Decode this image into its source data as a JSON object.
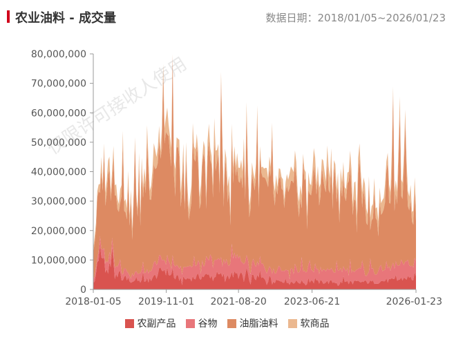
{
  "header": {
    "title": "农业油料 - 成交量",
    "date_range": "数据日期：2018/01/05~2026/01/23",
    "accent_color": "#d0021b"
  },
  "watermark": "仅限许可接收人使用",
  "chart_data": {
    "type": "area",
    "stacked": true,
    "y_axis": {
      "ylim": [
        0,
        80000000
      ],
      "ticks": [
        0,
        10000000,
        20000000,
        30000000,
        40000000,
        50000000,
        60000000,
        70000000,
        80000000
      ],
      "tick_labels": [
        "0",
        "10,000,000",
        "20,000,000",
        "30,000,000",
        "40,000,000",
        "50,000,000",
        "60,000,000",
        "70,000,000",
        "80,000,000"
      ]
    },
    "x_axis": {
      "range": [
        "2018-01-05",
        "2026-01-23"
      ],
      "tick_labels": [
        "2018-01-05",
        "2019-11-01",
        "2021-08-20",
        "2023-06-21",
        "2026-01-23"
      ]
    },
    "grid": false,
    "legend_position": "bottom",
    "dates": [
      "2018-01",
      "2018-04",
      "2018-07",
      "2018-10",
      "2019-01",
      "2019-04",
      "2019-07",
      "2019-10",
      "2020-01",
      "2020-04",
      "2020-07",
      "2020-10",
      "2021-01",
      "2021-04",
      "2021-07",
      "2021-10",
      "2022-01",
      "2022-04",
      "2022-07",
      "2022-10",
      "2023-01",
      "2023-04",
      "2023-07",
      "2023-10",
      "2024-01",
      "2024-04",
      "2024-07",
      "2024-10",
      "2025-01",
      "2025-04",
      "2025-07",
      "2025-10",
      "2026-01"
    ],
    "series": [
      {
        "name": "农副产品",
        "color": "#d9534f",
        "values": [
          3000000,
          11000000,
          7000000,
          4000000,
          3000000,
          3000000,
          4000000,
          7000000,
          4000000,
          3500000,
          4000000,
          4500000,
          5000000,
          4500000,
          5000000,
          4500000,
          4000000,
          3500000,
          3000000,
          3000000,
          2500000,
          2500000,
          2500000,
          2500000,
          2500000,
          2500000,
          2500000,
          2500000,
          2500000,
          3000000,
          3000000,
          4000000,
          3500000
        ]
      },
      {
        "name": "谷物",
        "color": "#e8767a",
        "values": [
          2000000,
          3000000,
          3000000,
          2500000,
          2500000,
          3000000,
          3500000,
          4000000,
          3500000,
          3500000,
          4000000,
          4500000,
          5000000,
          5000000,
          5000000,
          5000000,
          4500000,
          4500000,
          4000000,
          4000000,
          4000000,
          4000000,
          4000000,
          4000000,
          4000000,
          4000000,
          4000000,
          4000000,
          4000000,
          4500000,
          4500000,
          5000000,
          4500000
        ]
      },
      {
        "name": "油脂油料",
        "color": "#dd8a62",
        "values": [
          10000000,
          27000000,
          25000000,
          24000000,
          22000000,
          28000000,
          35000000,
          38000000,
          33000000,
          30000000,
          35000000,
          33000000,
          32000000,
          30000000,
          28000000,
          30000000,
          28000000,
          27000000,
          25000000,
          24000000,
          26000000,
          27000000,
          28000000,
          30000000,
          27000000,
          26000000,
          26000000,
          25000000,
          24000000,
          27000000,
          29000000,
          24000000,
          17000000
        ]
      },
      {
        "name": "软商品",
        "color": "#ebb890",
        "values": [
          1500000,
          4500000,
          4000000,
          4000000,
          3500000,
          4000000,
          6000000,
          6000000,
          5000000,
          4500000,
          5000000,
          5000000,
          4500000,
          4500000,
          4500000,
          4500000,
          4000000,
          4000000,
          4000000,
          4000000,
          4500000,
          4500000,
          5000000,
          5000000,
          4500000,
          4500000,
          4500000,
          4500000,
          4500000,
          5000000,
          5000000,
          4500000,
          4000000
        ]
      }
    ]
  }
}
